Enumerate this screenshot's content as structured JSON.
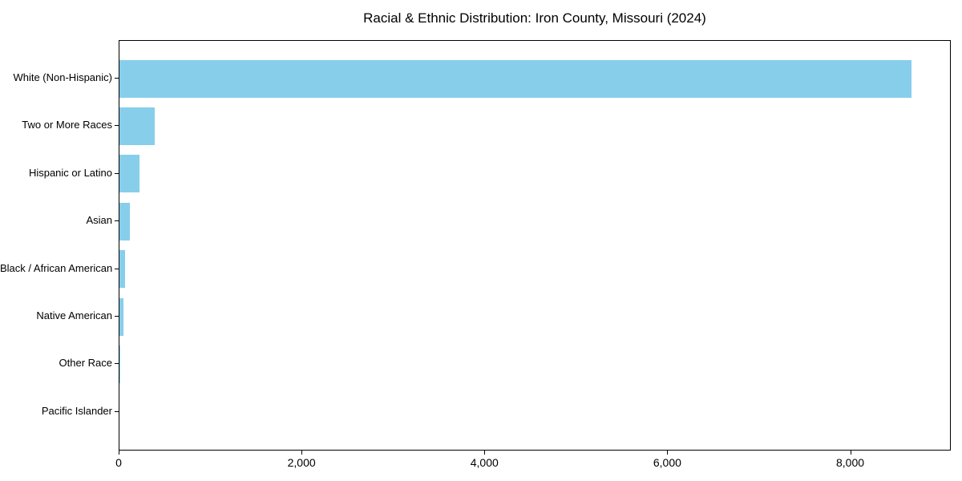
{
  "chart_data": {
    "type": "bar",
    "orientation": "horizontal",
    "title": "Racial & Ethnic Distribution: Iron County, Missouri (2024)",
    "categories": [
      "White (Non-Hispanic)",
      "Two or More Races",
      "Hispanic or Latino",
      "Asian",
      "Black / African American",
      "Native American",
      "Other Race",
      "Pacific Islander"
    ],
    "values": [
      8660,
      390,
      215,
      115,
      60,
      40,
      12,
      0
    ],
    "xlabel": "",
    "ylabel": "",
    "xlim": [
      0,
      9100
    ],
    "xticks": [
      0,
      2000,
      4000,
      6000,
      8000
    ],
    "xtick_labels": [
      "0",
      "2,000",
      "4,000",
      "6,000",
      "8,000"
    ],
    "grid": false,
    "legend": null,
    "bar_color": "#87CEEB",
    "spine_color": "#000000",
    "text_color": "#000000",
    "background_color": "#ffffff"
  }
}
